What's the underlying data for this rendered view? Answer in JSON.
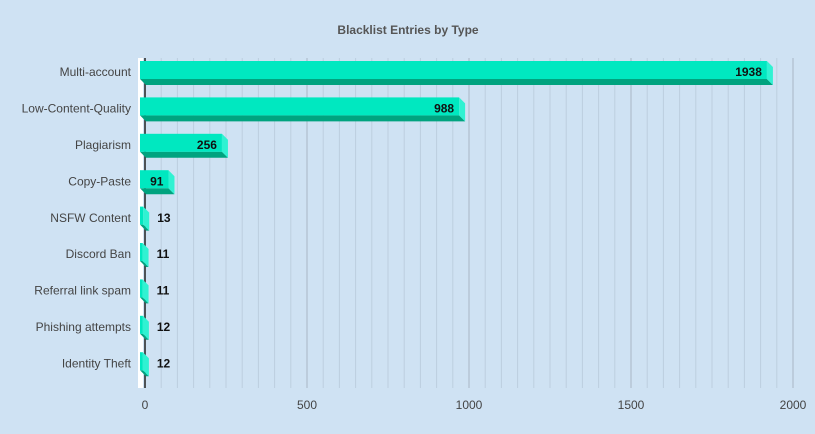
{
  "chart_data": {
    "type": "bar",
    "orientation": "horizontal",
    "title": "Blacklist Entries by Type",
    "categories": [
      "Multi-account",
      "Low-Content-Quality",
      "Plagiarism",
      "Copy-Paste",
      "NSFW Content",
      "Discord Ban",
      "Referral link spam",
      "Phishing attempts",
      "Identity Theft"
    ],
    "values": [
      1938,
      988,
      256,
      91,
      13,
      11,
      11,
      12,
      12
    ],
    "xlim": [
      0,
      2000
    ],
    "xticks": [
      0,
      500,
      1000,
      1500,
      2000
    ],
    "xlabel": "",
    "ylabel": "",
    "grid": true,
    "colors": {
      "bar_front": "#00e8c0",
      "bar_bottom": "#00a37f",
      "bar_side": "#30f2d2",
      "background": "#cfe2f3",
      "major_grid": "#a8b7c4",
      "minor_grid": "#bccfdf"
    }
  }
}
